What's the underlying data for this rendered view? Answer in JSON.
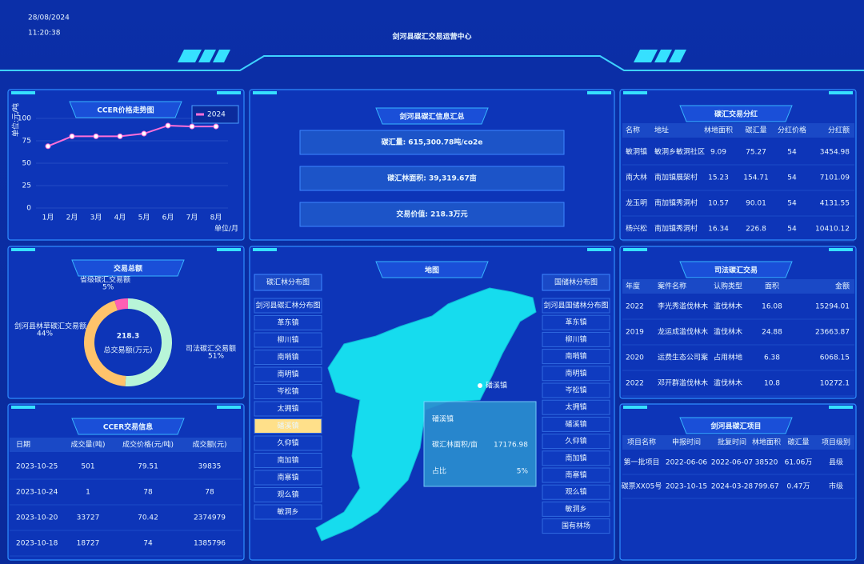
{
  "header": {
    "date": "28/08/2024",
    "time": "11:20:38",
    "title": "剑河县碳汇交易运营中心"
  },
  "price_chart": {
    "type": "line",
    "title": "CCER价格走势图",
    "y_label": "单位:元/吨",
    "note": "单位/月",
    "categories": [
      "1月",
      "2月",
      "3月",
      "4月",
      "5月",
      "6月",
      "7月",
      "8月"
    ],
    "series": [
      {
        "name": "2024",
        "color": "#ff6fd8",
        "values": [
          69,
          80,
          80,
          80,
          83,
          92,
          91,
          91
        ]
      }
    ],
    "ylim": [
      0,
      100
    ],
    "yticks": [
      0,
      25,
      50,
      75,
      100
    ],
    "grid": true
  },
  "summary": {
    "title": "剑河县碳汇信息汇总",
    "items": [
      "碳汇量: 615,300.78吨/co2e",
      "碳汇林面积: 39,319.67亩",
      "交易价值: 218.3万元"
    ]
  },
  "dividend": {
    "title": "碳汇交易分红",
    "columns": [
      "名称",
      "地址",
      "林地面积",
      "碳汇量",
      "分红价格",
      "分红额"
    ],
    "rows": [
      [
        "敏洞镇",
        "敏洞乡敏洞社区",
        "9.09",
        "75.27",
        "54",
        "3454.98"
      ],
      [
        "南大林",
        "南加镇展架村",
        "15.23",
        "154.71",
        "54",
        "7101.09"
      ],
      [
        "龙玉明",
        "南加镇秀洞村",
        "10.57",
        "90.01",
        "54",
        "4131.55"
      ],
      [
        "杨兴松",
        "南加镇秀洞村",
        "16.34",
        "226.8",
        "54",
        "10410.12"
      ]
    ]
  },
  "total": {
    "type": "donut",
    "title": "交易总额",
    "center_value": "218.3",
    "center_label": "总交易额(万元)",
    "labels": [
      "司法碳汇交易额",
      "剑河县林草碳汇交易额",
      "省级碳汇交易额"
    ],
    "values": [
      51,
      44,
      5
    ],
    "value_labels": [
      "51%",
      "44%",
      "5%"
    ],
    "colors": [
      "#b8f5d8",
      "#ffc36b",
      "#ff5fb4"
    ]
  },
  "ccer": {
    "title": "CCER交易信息",
    "columns": [
      "日期",
      "成交量(吨)",
      "成交价格(元/吨)",
      "成交额(元)"
    ],
    "rows": [
      [
        "2023-10-25",
        "501",
        "79.51",
        "39835"
      ],
      [
        "2023-10-24",
        "1",
        "78",
        "78"
      ],
      [
        "2023-10-20",
        "33727",
        "70.42",
        "2374979"
      ],
      [
        "2023-10-18",
        "18727",
        "74",
        "1385796"
      ]
    ]
  },
  "map": {
    "title": "地图",
    "marker": "磻溪镇",
    "left_list": {
      "title": "碳汇林分布图",
      "selected": 7,
      "items": [
        "剑河县碳汇林分布图",
        "革东镇",
        "柳川镇",
        "南哨镇",
        "南明镇",
        "岑松镇",
        "太拥镇",
        "磻溪镇",
        "久仰镇",
        "南加镇",
        "南寨镇",
        "观么镇",
        "敏洞乡"
      ]
    },
    "right_list": {
      "title": "国储林分布图",
      "items": [
        "剑河县国储林分布图",
        "革东镇",
        "柳川镇",
        "南哨镇",
        "南明镇",
        "岑松镇",
        "太拥镇",
        "磻溪镇",
        "久仰镇",
        "南加镇",
        "南寨镇",
        "观么镇",
        "敏洞乡",
        "国有林场"
      ]
    },
    "tooltip": {
      "name": "磻溪镇",
      "area_label": "碳汇林面积/亩",
      "area": "17176.98",
      "share_label": "占比",
      "share": "5%"
    }
  },
  "judicial": {
    "title": "司法碳汇交易",
    "columns": [
      "年度",
      "案件名称",
      "认购类型",
      "面积",
      "金额"
    ],
    "rows": [
      [
        "2022",
        "李光秀滥伐林木",
        "滥伐林木",
        "16.08",
        "15294.01"
      ],
      [
        "2019",
        "龙运成滥伐林木",
        "滥伐林木",
        "24.88",
        "23663.87"
      ],
      [
        "2020",
        "运费生态公司案",
        "占用林地",
        "6.38",
        "6068.15"
      ],
      [
        "2022",
        "邓开群滥伐林木",
        "滥伐林木",
        "10.8",
        "10272.1"
      ]
    ]
  },
  "projects": {
    "title": "剑河县碳汇项目",
    "columns": [
      "项目名称",
      "申报时间",
      "批复时间",
      "林地面积",
      "碳汇量",
      "项目级别"
    ],
    "rows": [
      [
        "第一批项目",
        "2022-06-06",
        "2022-06-07",
        "38520",
        "61.06万",
        "县级"
      ],
      [
        "碳票XX05号",
        "2023-10-15",
        "2024-03-28",
        "799.67",
        "0.47万",
        "市级"
      ]
    ]
  }
}
